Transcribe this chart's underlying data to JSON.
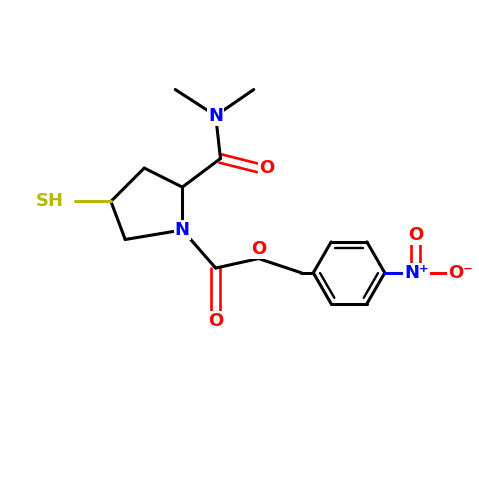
{
  "bg_color": "#ffffff",
  "bond_color": "#000000",
  "atom_colors": {
    "N": "#0000ff",
    "O": "#ff0000",
    "S": "#b8b800",
    "C": "#000000"
  },
  "bw": 2.2,
  "figsize": [
    4.79,
    4.79
  ],
  "dpi": 100,
  "xlim": [
    0,
    10
  ],
  "ylim": [
    0,
    10
  ],
  "font_size": 13,
  "font_size_sm": 11
}
